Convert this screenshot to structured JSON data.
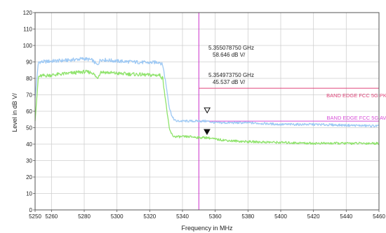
{
  "chart_data": {
    "type": "line",
    "xlabel": "Frequency in MHz",
    "ylabel": "Level in dB   V/",
    "xlim": [
      5250,
      5460
    ],
    "ylim": [
      0,
      120
    ],
    "grid": true,
    "x_ticks": [
      5250,
      5260,
      5280,
      5300,
      5320,
      5340,
      5360,
      5380,
      5400,
      5420,
      5440,
      5460
    ],
    "y_ticks": [
      0,
      10,
      20,
      30,
      40,
      50,
      60,
      70,
      80,
      90,
      100,
      110,
      120
    ],
    "series": [
      {
        "color": "#9ec9f4",
        "x": [
          5250,
          5252,
          5254,
          5260,
          5270,
          5280,
          5285,
          5288,
          5290,
          5295,
          5300,
          5310,
          5320,
          5326,
          5328,
          5330,
          5332,
          5334,
          5336,
          5340,
          5345,
          5350,
          5355,
          5360,
          5370,
          5380,
          5400,
          5420,
          5440,
          5460
        ],
        "y": [
          68,
          90,
          90,
          90.5,
          91,
          92,
          91,
          88,
          91.5,
          91,
          90.5,
          90,
          89.5,
          90,
          88,
          76,
          62,
          56,
          54,
          54,
          54,
          54,
          54,
          53,
          53,
          53,
          52,
          52,
          51.5,
          51
        ]
      },
      {
        "color": "#8fe36c",
        "x": [
          5250,
          5252,
          5254,
          5260,
          5270,
          5280,
          5285,
          5288,
          5290,
          5295,
          5300,
          5310,
          5320,
          5326,
          5328,
          5330,
          5332,
          5334,
          5336,
          5340,
          5345,
          5350,
          5355,
          5360,
          5370,
          5380,
          5400,
          5420,
          5440,
          5460
        ],
        "y": [
          54,
          81,
          81.5,
          82,
          83,
          84,
          83.5,
          80,
          84,
          83.5,
          83,
          82.5,
          82,
          82,
          80,
          64,
          49,
          45,
          44.5,
          44.5,
          44.5,
          44,
          44,
          43,
          42,
          41.5,
          41,
          40.5,
          40.5,
          40.5
        ]
      }
    ],
    "limits": [
      {
        "label": "BAND EDGE  FCC 5G PK",
        "y": 74,
        "x_start": 5350,
        "color": "#e0457a"
      },
      {
        "label": "BAND EDGE  FCC 5G AV",
        "y": 54,
        "x_start": 5350,
        "color": "#d84fd8"
      }
    ],
    "markers": [
      {
        "symbol": "hollow-triangle",
        "x": 5355.079,
        "y": 58.646,
        "freq": "5.355078750 GHz",
        "level": "58.646 dB   V/"
      },
      {
        "symbol": "filled-triangle",
        "x": 5354.974,
        "y": 45.537,
        "freq": "5.354973750 GHz",
        "level": "45.537 dB   V/"
      }
    ],
    "vertical_line": {
      "x": 5350,
      "color": "#cc33cc"
    }
  }
}
